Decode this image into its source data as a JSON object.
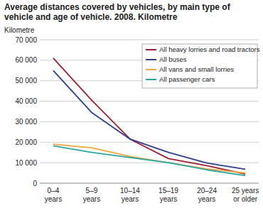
{
  "chart_data": {
    "type": "line",
    "title": "Average distances covered by vehicles, by main type of vehicle and age of vehicle. 2008. Kilometre",
    "y_label": "Kilometre",
    "categories": [
      "0–4 years",
      "5–9 years",
      "10–14 years",
      "15–19 years",
      "20–24 years",
      "25 years or older"
    ],
    "series": [
      {
        "name": "All heavy lorries and road tractors",
        "color": "#9e1f33",
        "values": [
          61000,
          40500,
          21500,
          12000,
          8500,
          4500
        ]
      },
      {
        "name": "All buses",
        "color": "#2d3f8e",
        "values": [
          55000,
          34500,
          21500,
          15000,
          9800,
          6800
        ]
      },
      {
        "name": "All vans and small lorries",
        "color": "#f4a53b",
        "values": [
          19000,
          17300,
          13000,
          10000,
          7000,
          5000
        ]
      },
      {
        "name": "All passenger cars",
        "color": "#2aa7a5",
        "values": [
          18200,
          15000,
          12500,
          10000,
          6500,
          3700
        ]
      }
    ],
    "ylim": [
      0,
      70000
    ],
    "yticks": [
      0,
      {
        "value": 10000,
        "label": "10 000"
      },
      {
        "value": 20000,
        "label": "20 000"
      },
      {
        "value": 30000,
        "label": "30 000"
      },
      {
        "value": 40000,
        "label": "40 000"
      },
      {
        "value": 50000,
        "label": "50 000"
      },
      {
        "value": 60000,
        "label": "60 000"
      },
      {
        "value": 70000,
        "label": "70 000"
      }
    ],
    "grid": true,
    "legend": "top-right"
  }
}
